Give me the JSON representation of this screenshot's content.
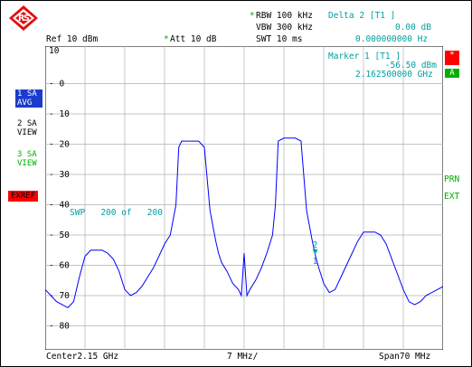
{
  "header": {
    "rbw": "RBW 100 kHz",
    "vbw": "VBW 300 kHz",
    "swt": "SWT 10 ms",
    "ref": "Ref 10 dBm",
    "att": "Att 10 dB",
    "star1": "*",
    "star2": "*",
    "delta_title": "Delta 2 [T1 ]",
    "delta_level": "0.00 dB",
    "delta_freq": "0.000000000 Hz"
  },
  "marker_box": {
    "title": "Marker 1 [T1 ]",
    "level": "-56.50 dBm",
    "freq": "2.162500000 GHz"
  },
  "left_panel": {
    "trace1_line1": "1 SA",
    "trace1_line2": "AVG",
    "trace2_line1": "2 SA",
    "trace2_line2": "VIEW",
    "trace3_line1": "3 SA",
    "trace3_line2": "VIEW",
    "exref": "EXREF"
  },
  "right_panel": {
    "star_badge": "*",
    "a_badge": "A",
    "prn": "PRN",
    "ext": "EXT"
  },
  "sweep_info": "SWP   200 of   200",
  "marker_labels": {
    "m1": "1",
    "m2": "2"
  },
  "footer": {
    "center": "Center2.15 GHz",
    "div": "7 MHz/",
    "span": "Span70 MHz"
  },
  "colors": {
    "trace": "#0000ff",
    "cyan": "#00a0a0",
    "green": "#00b000",
    "red": "#ff0000",
    "badge_blue": "#1a3ccc"
  },
  "chart_data": {
    "type": "line",
    "x_unit": "MHz",
    "y_unit": "dBm",
    "xlim": [
      2115,
      2185
    ],
    "ylim": [
      -90,
      10
    ],
    "y_ticks": [
      "10",
      "0",
      "-10",
      "-20",
      "-30",
      "-40",
      "-50",
      "-60",
      "-70",
      "-80"
    ],
    "grid": true,
    "series": [
      {
        "x": [
          2115,
          2116,
          2117,
          2118,
          2119,
          2120,
          2121,
          2122,
          2123,
          2124,
          2125,
          2126,
          2127,
          2128,
          2129,
          2130,
          2131,
          2132,
          2133,
          2134,
          2135,
          2136,
          2137,
          2138,
          2138.5,
          2139,
          2140,
          2141,
          2142,
          2143,
          2144,
          2145,
          2145.5,
          2146,
          2147,
          2148,
          2149,
          2149.5,
          2150,
          2150.5,
          2151,
          2152,
          2153,
          2154,
          2155,
          2155.5,
          2156,
          2157,
          2158,
          2159,
          2160,
          2161,
          2162,
          2162.5,
          2163,
          2164,
          2165,
          2166,
          2167,
          2168,
          2169,
          2170,
          2171,
          2172,
          2173,
          2174,
          2175,
          2176,
          2177,
          2178,
          2179,
          2180,
          2181,
          2182,
          2183,
          2184,
          2185
        ],
        "y": [
          -68,
          -70,
          -72,
          -73,
          -74,
          -72,
          -64,
          -57,
          -55,
          -55,
          -55,
          -56,
          -58,
          -62,
          -68,
          -70,
          -69,
          -67,
          -64,
          -61,
          -57,
          -53,
          -50,
          -40,
          -21,
          -19,
          -19,
          -19,
          -19,
          -21,
          -42,
          -52,
          -56,
          -59,
          -62,
          -66,
          -68,
          -70,
          -56,
          -70,
          -68,
          -65,
          -61,
          -56,
          -50,
          -40,
          -19,
          -18,
          -18,
          -18,
          -19,
          -42,
          -52,
          -56.5,
          -60,
          -66,
          -69,
          -68,
          -64,
          -60,
          -56,
          -52,
          -49,
          -49,
          -49,
          -50,
          -53,
          -58,
          -63,
          -68,
          -72,
          -73,
          -72,
          -70,
          -69,
          -68,
          -67
        ]
      }
    ]
  }
}
